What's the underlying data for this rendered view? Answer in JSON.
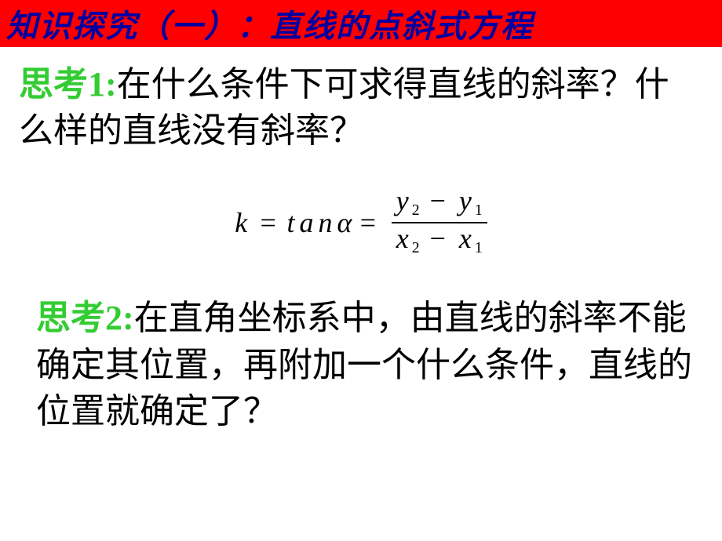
{
  "header": {
    "background_color": "#ff0000",
    "text_color": "#0000a0",
    "title": "知识探究（一）：直线的点斜式方程"
  },
  "think1": {
    "label": "思考1:",
    "label_color": "#33cc33",
    "text": "在什么条件下可求得直线的斜率？什么样的直线没有斜率？"
  },
  "formula": {
    "lhs_k": "k",
    "eq": "=",
    "tan": "tan",
    "alpha": "α",
    "num_y2": "y",
    "num_y2_sub": "2",
    "minus": "−",
    "num_y1": "y",
    "num_y1_sub": "1",
    "den_x2": "x",
    "den_x2_sub": "2",
    "den_x1": "x",
    "den_x1_sub": "1"
  },
  "think2": {
    "label": "思考2:",
    "label_color": "#33cc33",
    "text": "在直角坐标系中，由直线的斜率不能确定其位置，再附加一个什么条件，直线的位置就确定了？"
  }
}
